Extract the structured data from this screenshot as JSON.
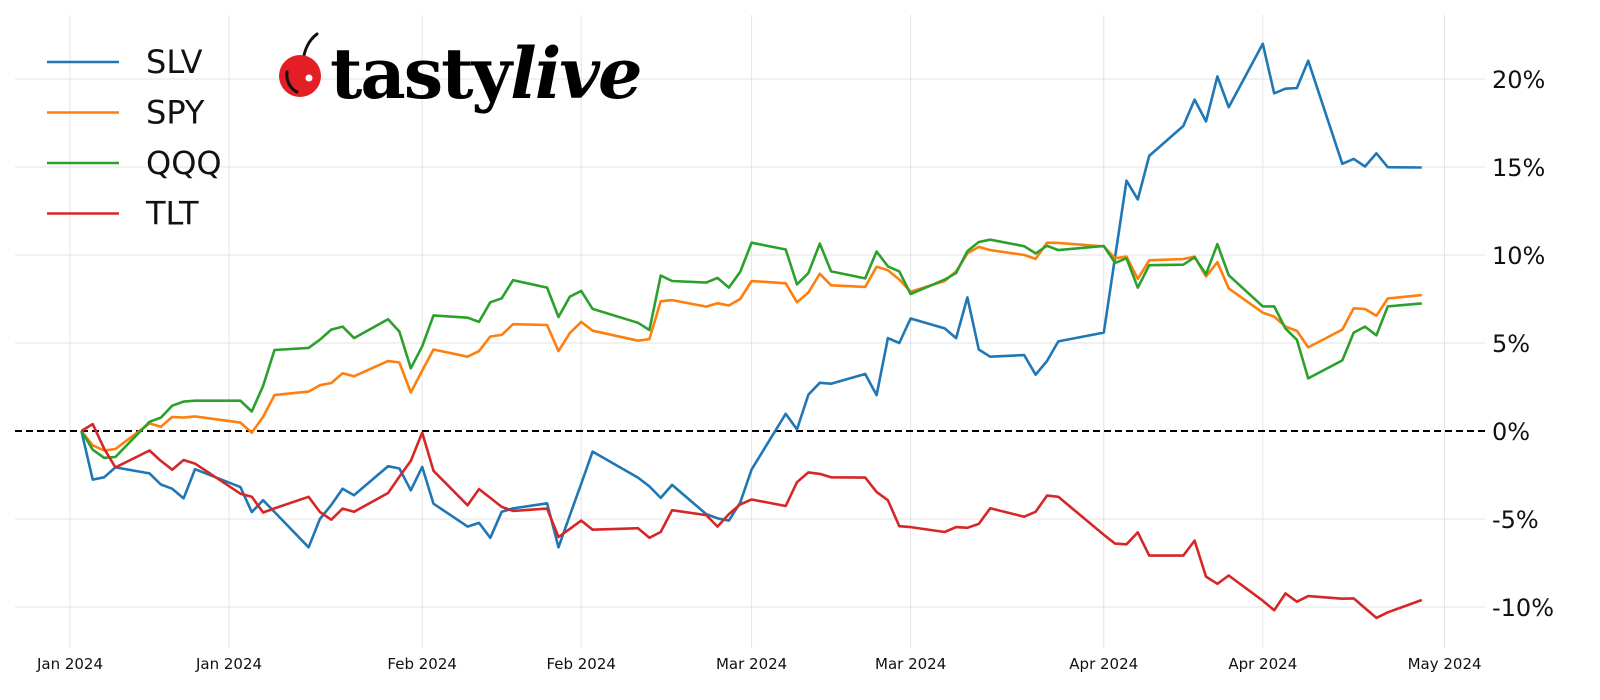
{
  "chart_data": {
    "type": "line",
    "title": "",
    "xlabel": "",
    "ylabel": "",
    "xlim": [
      "2023-12-27",
      "2024-05-04"
    ],
    "ylim": [
      -12.3,
      23.6
    ],
    "grid": true,
    "legend_placement": "top-left",
    "reference_line": {
      "y": 0,
      "style": "dashed",
      "color": "#000000"
    },
    "x_ticks": [
      {
        "date": "2024-01-01",
        "label": "Jan 2024"
      },
      {
        "date": "2024-01-15",
        "label": "Jan 2024"
      },
      {
        "date": "2024-02-01",
        "label": "Feb 2024"
      },
      {
        "date": "2024-02-15",
        "label": "Feb 2024"
      },
      {
        "date": "2024-03-01",
        "label": "Mar 2024"
      },
      {
        "date": "2024-03-15",
        "label": "Mar 2024"
      },
      {
        "date": "2024-04-01",
        "label": "Apr 2024"
      },
      {
        "date": "2024-04-15",
        "label": "Apr 2024"
      },
      {
        "date": "2024-05-01",
        "label": "May 2024"
      }
    ],
    "y_ticks": [
      {
        "value": -10,
        "label": "-10%"
      },
      {
        "value": -5,
        "label": "-5%"
      },
      {
        "value": 0,
        "label": "0%"
      },
      {
        "value": 5,
        "label": "5%"
      },
      {
        "value": 10,
        "label": "10%"
      },
      {
        "value": 15,
        "label": "15%"
      },
      {
        "value": 20,
        "label": "20%"
      }
    ],
    "x": [
      "2024-01-02",
      "2024-01-03",
      "2024-01-04",
      "2024-01-05",
      "2024-01-08",
      "2024-01-09",
      "2024-01-10",
      "2024-01-11",
      "2024-01-12",
      "2024-01-16",
      "2024-01-17",
      "2024-01-18",
      "2024-01-19",
      "2024-01-22",
      "2024-01-23",
      "2024-01-24",
      "2024-01-25",
      "2024-01-26",
      "2024-01-29",
      "2024-01-30",
      "2024-01-31",
      "2024-02-01",
      "2024-02-02",
      "2024-02-05",
      "2024-02-06",
      "2024-02-07",
      "2024-02-08",
      "2024-02-09",
      "2024-02-12",
      "2024-02-13",
      "2024-02-14",
      "2024-02-15",
      "2024-02-16",
      "2024-02-20",
      "2024-02-21",
      "2024-02-22",
      "2024-02-23",
      "2024-02-26",
      "2024-02-27",
      "2024-02-28",
      "2024-02-29",
      "2024-03-01",
      "2024-03-04",
      "2024-03-05",
      "2024-03-06",
      "2024-03-07",
      "2024-03-08",
      "2024-03-11",
      "2024-03-12",
      "2024-03-13",
      "2024-03-14",
      "2024-03-15",
      "2024-03-18",
      "2024-03-19",
      "2024-03-20",
      "2024-03-21",
      "2024-03-22",
      "2024-03-25",
      "2024-03-26",
      "2024-03-27",
      "2024-03-28",
      "2024-04-01",
      "2024-04-02",
      "2024-04-03",
      "2024-04-04",
      "2024-04-05",
      "2024-04-08",
      "2024-04-09",
      "2024-04-10",
      "2024-04-11",
      "2024-04-12",
      "2024-04-15",
      "2024-04-16",
      "2024-04-17",
      "2024-04-18",
      "2024-04-19",
      "2024-04-22",
      "2024-04-23",
      "2024-04-24",
      "2024-04-25",
      "2024-04-26",
      "2024-04-29"
    ],
    "series": [
      {
        "name": "SLV",
        "color": "#1f77b4",
        "values": [
          0,
          -2.76,
          -2.63,
          -2.07,
          -2.41,
          -3.04,
          -3.28,
          -3.83,
          -2.17,
          -3.19,
          -4.61,
          -3.93,
          -4.6,
          -6.61,
          -5.0,
          -4.2,
          -3.28,
          -3.65,
          -2.0,
          -2.13,
          -3.37,
          -2.04,
          -4.13,
          -5.43,
          -5.22,
          -6.07,
          -4.59,
          -4.4,
          -4.11,
          -6.61,
          -4.8,
          -3.0,
          -1.17,
          -2.65,
          -3.15,
          -3.8,
          -3.06,
          -4.72,
          -4.96,
          -5.09,
          -4.07,
          -2.19,
          0.98,
          0.09,
          2.07,
          2.74,
          2.69,
          3.24,
          2.04,
          5.28,
          5.0,
          6.39,
          5.83,
          5.28,
          7.59,
          4.63,
          4.22,
          4.31,
          3.2,
          3.98,
          5.09,
          5.59,
          null,
          14.22,
          13.16,
          15.63,
          17.33,
          18.83,
          17.59,
          20.15,
          18.4,
          22.0,
          19.19,
          19.45,
          19.49,
          21.04,
          15.18,
          15.46,
          15.03,
          15.78,
          14.99,
          14.97
        ]
      },
      {
        "name": "SPY",
        "color": "#ff7f0e",
        "values": [
          0,
          -0.81,
          -1.11,
          -1.02,
          0.43,
          0.24,
          0.8,
          0.76,
          0.83,
          0.48,
          -0.09,
          0.8,
          2.04,
          2.24,
          2.6,
          2.73,
          3.28,
          3.11,
          3.98,
          3.89,
          2.19,
          3.43,
          4.63,
          4.22,
          4.54,
          5.37,
          5.46,
          6.07,
          6.02,
          4.54,
          5.56,
          6.2,
          5.7,
          5.13,
          5.22,
          7.37,
          7.44,
          7.07,
          7.26,
          7.13,
          7.5,
          8.52,
          8.39,
          7.31,
          7.87,
          8.93,
          8.28,
          8.19,
          9.33,
          9.13,
          8.61,
          7.91,
          8.52,
          9.07,
          10.09,
          10.46,
          10.28,
          10.0,
          9.78,
          10.7,
          10.69,
          10.49,
          9.81,
          9.91,
          8.64,
          9.7,
          9.77,
          9.91,
          8.78,
          9.59,
          8.1,
          6.72,
          6.5,
          5.93,
          5.69,
          4.75,
          5.76,
          6.97,
          6.93,
          6.55,
          7.53,
          7.72
        ]
      },
      {
        "name": "QQQ",
        "color": "#2ca02c",
        "values": [
          0,
          -1.06,
          -1.52,
          -1.48,
          0.52,
          0.76,
          1.44,
          1.67,
          1.72,
          1.72,
          1.11,
          2.56,
          4.6,
          4.72,
          5.19,
          5.76,
          5.93,
          5.28,
          6.35,
          5.65,
          3.56,
          4.81,
          6.57,
          6.44,
          6.2,
          7.31,
          7.54,
          8.57,
          8.15,
          6.48,
          7.63,
          7.96,
          6.94,
          6.15,
          5.74,
          8.83,
          8.52,
          8.43,
          8.7,
          8.15,
          9.04,
          10.7,
          10.31,
          8.33,
          8.98,
          10.65,
          9.07,
          8.67,
          10.2,
          9.35,
          9.07,
          7.78,
          8.6,
          8.98,
          10.22,
          10.74,
          10.87,
          10.5,
          10.09,
          10.52,
          10.28,
          10.51,
          9.55,
          9.81,
          8.14,
          9.42,
          9.45,
          9.87,
          8.91,
          10.62,
          8.85,
          7.08,
          7.08,
          5.82,
          5.18,
          2.99,
          4.01,
          5.59,
          5.93,
          5.44,
          7.08,
          7.25
        ]
      },
      {
        "name": "TLT",
        "color": "#d62728",
        "values": [
          0,
          0.39,
          -1.0,
          -2.07,
          -1.11,
          -1.7,
          -2.2,
          -1.65,
          -1.85,
          -3.56,
          -3.74,
          -4.63,
          -4.4,
          -3.74,
          -4.6,
          -5.04,
          -4.41,
          -4.59,
          -3.52,
          -2.59,
          -1.7,
          -0.09,
          -2.26,
          -4.22,
          -3.3,
          -3.8,
          -4.31,
          -4.54,
          -4.41,
          -6.02,
          -5.56,
          -5.09,
          -5.61,
          -5.52,
          -6.07,
          -5.74,
          -4.5,
          -4.78,
          -5.43,
          -4.72,
          -4.17,
          -3.89,
          -4.26,
          -2.91,
          -2.35,
          -2.44,
          -2.63,
          -2.65,
          -3.46,
          -3.94,
          -5.41,
          -5.46,
          -5.74,
          -5.46,
          -5.5,
          -5.28,
          -4.39,
          -4.87,
          -4.59,
          -3.67,
          -3.74,
          -5.9,
          -6.4,
          -6.44,
          -5.76,
          -7.08,
          -7.08,
          -6.23,
          -8.27,
          -8.68,
          -8.21,
          -9.64,
          -10.19,
          -9.23,
          -9.7,
          -9.38,
          -9.53,
          -9.51,
          -10.06,
          -10.62,
          -10.3,
          -9.6
        ]
      }
    ]
  },
  "logo": {
    "text_bold": "tasty",
    "text_italic": "live",
    "cherry_color": "#e31e24"
  }
}
